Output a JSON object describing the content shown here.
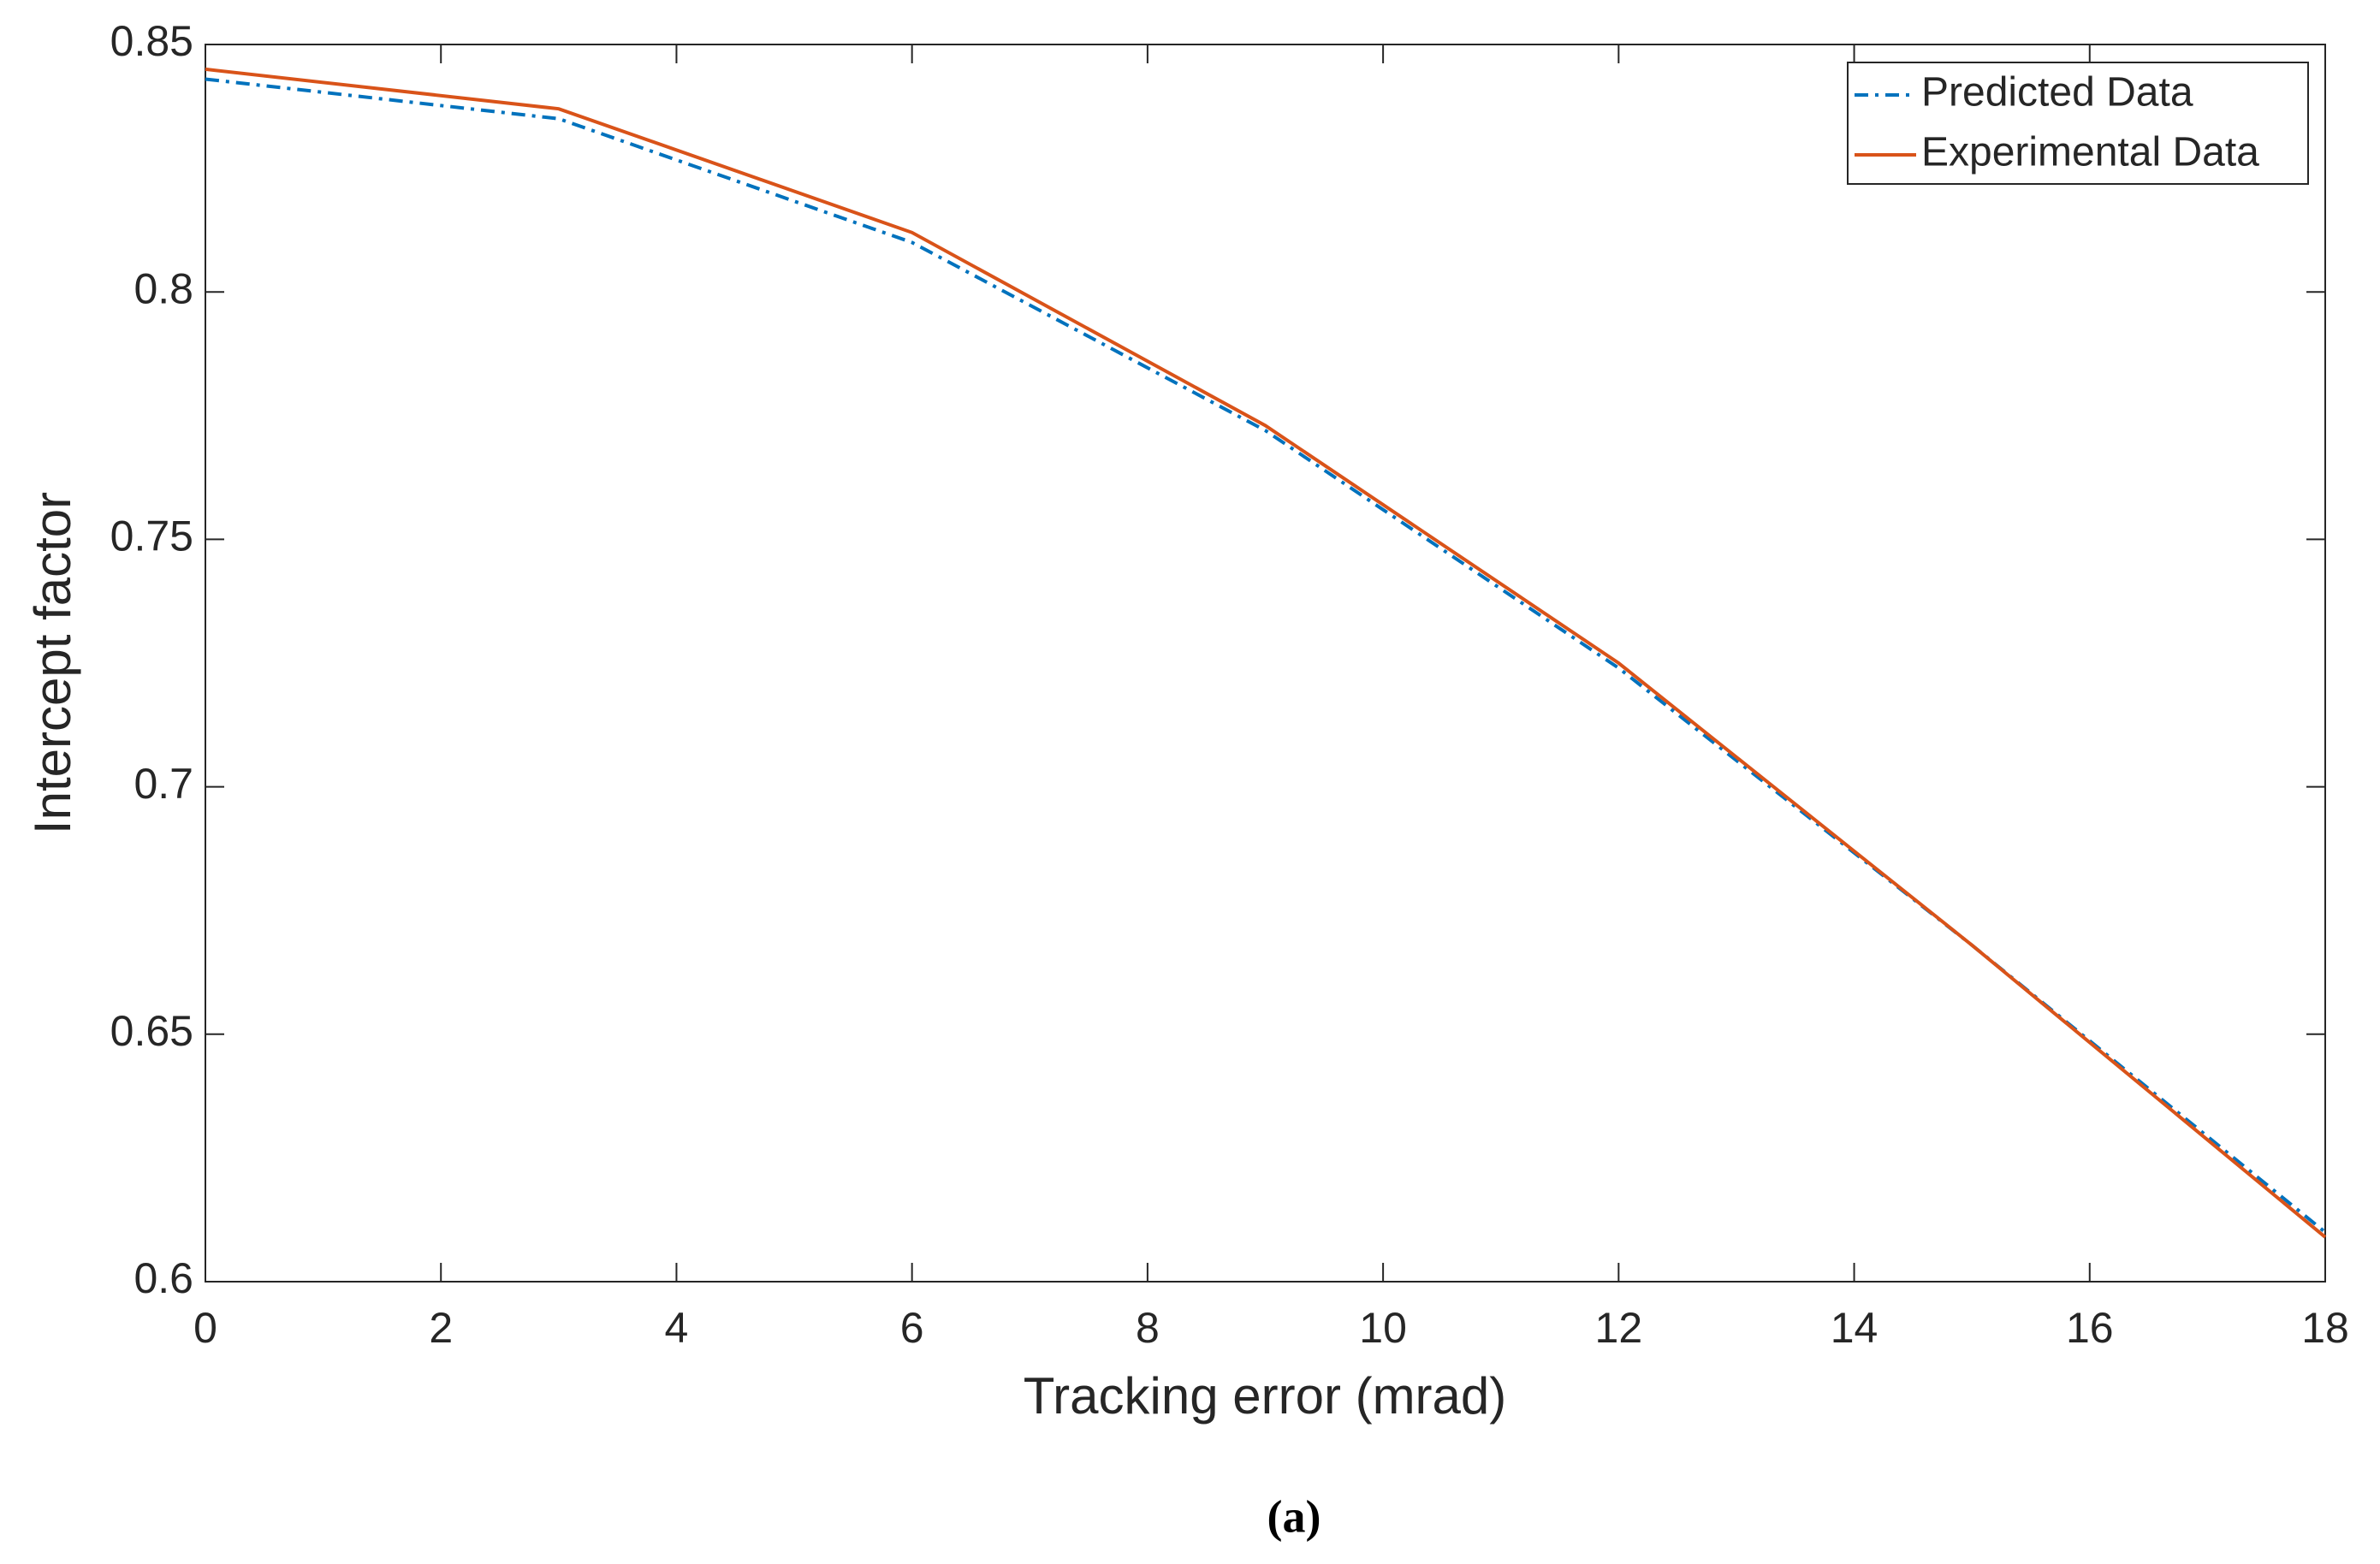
{
  "chart_data": {
    "type": "line",
    "x_label": "Tracking error (mrad)",
    "y_label": "Intercept factor",
    "caption": "(a)",
    "x": [
      0,
      3,
      6,
      9,
      12,
      15,
      18
    ],
    "series": [
      {
        "name": "Predicted Data",
        "color": "#0072bd",
        "line_style": "dashdot",
        "values": [
          0.843,
          0.835,
          0.81,
          0.772,
          0.724,
          0.668,
          0.61
        ]
      },
      {
        "name": "Experimental Data",
        "color": "#d95319",
        "line_style": "solid",
        "values": [
          0.845,
          0.837,
          0.812,
          0.773,
          0.725,
          0.668,
          0.609
        ]
      }
    ],
    "xlim": [
      0,
      18
    ],
    "xticks": [
      0,
      2,
      4,
      6,
      8,
      10,
      12,
      14,
      16,
      18
    ],
    "ylim": [
      0.6,
      0.85
    ],
    "yticks": [
      0.6,
      0.65,
      0.7,
      0.75,
      0.8,
      0.85
    ],
    "grid": false,
    "legend": "top-right"
  }
}
